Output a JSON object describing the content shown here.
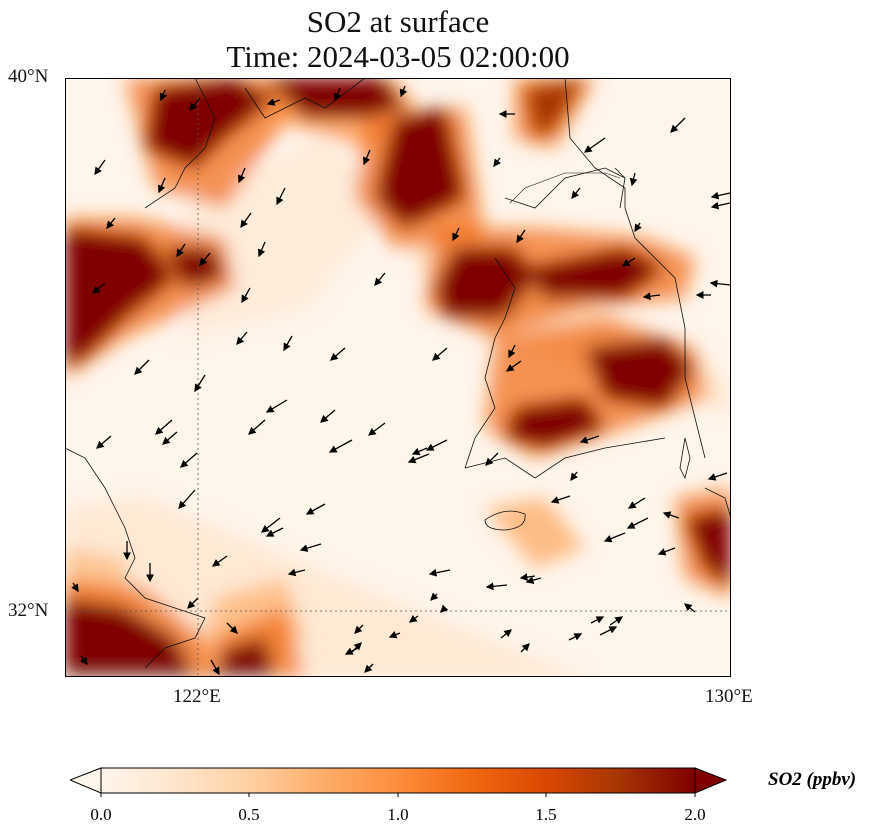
{
  "title": {
    "line1": "SO2 at surface",
    "line2": "Time: 2024-03-05 02:00:00"
  },
  "map": {
    "lat_ticks": [
      "40°N",
      "32°N"
    ],
    "lon_ticks": [
      "122°E",
      "130°E"
    ],
    "extent": {
      "lon_min": 120.0,
      "lon_max": 130.0,
      "lat_min": 31.0,
      "lat_max": 40.0
    },
    "gridlines": true,
    "coastlines": true,
    "wind_vectors": true
  },
  "colorbar": {
    "label": "SO2 (ppbv)",
    "tick_labels": [
      "0.0",
      "0.5",
      "1.0",
      "1.5",
      "2.0"
    ],
    "range": [
      0.0,
      2.0
    ],
    "extend": "both",
    "colormap": [
      "#fff5eb",
      "#fee6ce",
      "#fdd0a2",
      "#fdae6b",
      "#fd8d3c",
      "#f16913",
      "#d94801",
      "#a63603",
      "#7f0000"
    ]
  }
}
